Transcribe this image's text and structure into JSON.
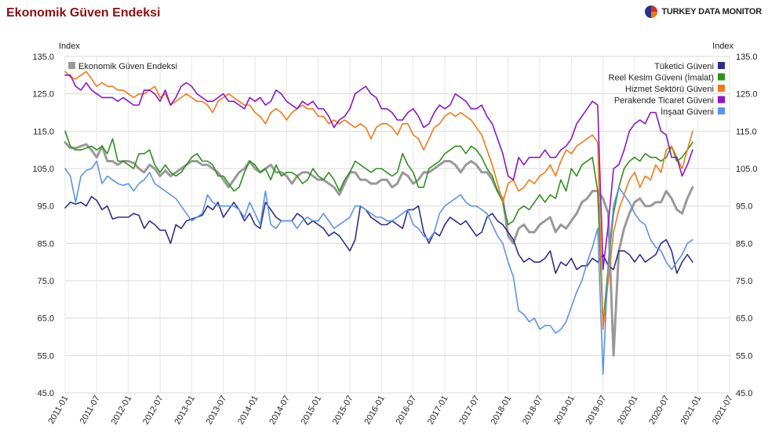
{
  "title": "Ekonomik Güven Endeksi",
  "logo_text": "TURKEY DATA MONITOR",
  "chart_data": {
    "type": "line",
    "ylabel_left": "Index",
    "ylabel_right": "Index",
    "ylim": [
      45,
      135
    ],
    "yticks": [
      "135.0",
      "125.0",
      "115.0",
      "105.0",
      "95.0",
      "85.0",
      "75.0",
      "65.0",
      "55.0",
      "45.0"
    ],
    "ytick_values": [
      135,
      125,
      115,
      105,
      95,
      85,
      75,
      65,
      55,
      45
    ],
    "xticks": [
      "2011-01",
      "2011-07",
      "2012-01",
      "2012-07",
      "2013-01",
      "2013-07",
      "2014-01",
      "2014-07",
      "2015-01",
      "2015-07",
      "2016-01",
      "2016-07",
      "2017-01",
      "2017-07",
      "2018-01",
      "2018-07",
      "2019-01",
      "2019-07",
      "2020-01",
      "2020-07",
      "2021-01",
      "2021-07"
    ],
    "x_start": "2011-01",
    "grid": true,
    "legend_left_placement": "top-left",
    "legend_right_placement": "top-right",
    "series": [
      {
        "name": "Ekonomik Güven Endeksi",
        "color": "#999999",
        "width": 3,
        "legend": "left",
        "values": [
          112,
          110.5,
          110.5,
          111,
          111.5,
          110,
          108,
          111,
          107,
          107,
          106,
          107,
          107,
          106.5,
          105,
          104,
          106,
          105,
          103,
          104.5,
          103,
          104,
          105,
          106,
          107,
          107,
          106,
          106,
          105,
          104,
          102,
          100,
          102,
          104,
          105,
          107,
          105,
          104,
          105,
          106,
          104,
          104,
          103,
          101,
          103,
          104,
          104,
          103,
          102,
          102,
          101,
          100,
          98,
          101,
          104,
          104,
          102,
          102,
          101,
          101,
          102,
          102,
          100,
          101,
          104,
          103,
          101,
          102,
          104,
          104,
          105,
          106,
          107,
          107,
          106,
          104,
          106,
          107,
          106,
          104,
          104,
          102,
          99,
          97,
          87,
          85,
          89,
          90,
          88,
          88,
          90,
          91,
          92,
          88,
          90,
          89,
          91,
          93,
          96,
          97,
          99,
          99,
          97,
          93,
          55,
          83,
          89,
          93,
          96,
          97,
          95,
          95,
          96,
          96,
          99,
          97,
          94,
          93,
          97,
          100
        ]
      },
      {
        "name": "Tüketici Güveni",
        "color": "#2e2f8a",
        "width": 1.6,
        "legend": "right",
        "values": [
          94.5,
          96,
          95.5,
          96,
          95,
          97.5,
          96.5,
          94,
          95,
          91.5,
          92,
          92,
          92,
          93,
          92.5,
          89,
          91,
          90,
          88.5,
          88.5,
          85,
          90,
          89,
          91,
          91.5,
          92,
          92.5,
          95,
          94,
          96,
          92,
          94,
          96,
          94,
          91,
          93,
          90,
          89,
          96,
          94,
          92,
          91,
          91,
          91,
          93,
          92,
          90,
          91,
          90,
          89,
          87,
          88,
          87,
          85,
          83,
          86,
          95,
          94,
          92,
          91,
          90,
          90,
          91,
          90,
          89,
          94,
          94,
          95,
          88,
          85,
          88,
          87,
          90,
          92,
          91,
          90,
          91,
          89,
          87,
          88,
          92,
          93,
          91,
          90,
          88,
          86,
          82,
          80,
          81,
          80,
          80,
          81,
          83,
          77,
          80,
          79,
          81,
          78,
          79,
          79,
          81,
          80,
          82,
          79,
          78,
          83,
          83,
          82,
          80,
          82,
          80,
          81,
          82,
          85,
          86,
          83,
          77,
          80,
          82,
          80
        ]
      },
      {
        "name": "Reel Kesim Güveni (İmalat)",
        "color": "#2f8f1f",
        "width": 1.6,
        "legend": "right",
        "values": [
          115,
          111,
          110,
          110,
          110.5,
          111,
          110,
          111,
          109,
          113,
          107,
          107,
          106,
          105,
          109,
          109,
          110,
          106,
          104,
          106,
          104,
          103,
          104,
          106,
          108,
          109,
          107,
          107,
          106,
          103,
          103,
          101,
          99,
          100,
          104,
          107,
          106,
          104,
          105,
          102,
          106,
          103,
          104,
          104,
          103,
          101,
          102,
          105,
          103,
          102,
          104,
          102,
          99,
          102,
          104,
          107,
          106,
          105,
          104,
          105,
          105,
          104,
          103,
          104,
          109,
          106,
          104,
          100,
          100,
          105,
          106,
          107,
          109,
          110,
          111,
          111,
          109,
          111,
          110,
          108,
          105,
          103,
          99,
          96,
          90,
          91,
          94,
          95,
          94,
          96,
          98,
          96,
          98,
          97,
          102,
          99,
          105,
          103,
          106,
          107,
          108,
          99,
          63,
          79,
          93,
          100,
          105,
          107,
          108,
          107,
          109,
          108,
          108,
          107,
          108,
          111,
          107,
          108,
          110,
          112
        ]
      },
      {
        "name": "Hizmet Sektörü Güveni",
        "color": "#f07a1e",
        "width": 1.6,
        "legend": "right",
        "values": [
          131,
          129.5,
          129,
          130,
          131,
          129,
          127,
          128,
          127,
          127,
          126,
          126,
          125,
          124,
          125,
          125,
          126,
          127,
          124,
          125,
          122,
          123,
          124,
          125,
          124,
          123,
          123,
          122,
          120,
          123,
          124,
          125,
          124,
          123,
          122,
          122,
          120,
          119,
          117,
          120,
          121,
          120,
          118,
          120,
          121,
          122,
          121,
          121,
          119,
          119,
          117,
          118,
          117,
          118,
          117,
          116,
          117,
          116,
          113,
          116,
          117,
          117,
          116,
          114,
          117,
          117,
          114,
          113,
          110,
          113,
          116,
          117,
          119,
          120,
          119,
          120,
          119,
          118,
          116,
          114,
          110,
          106,
          101,
          96,
          101,
          102,
          99,
          100,
          102,
          101,
          103,
          104,
          106,
          103,
          107,
          110,
          109,
          111,
          112,
          113,
          114,
          112,
          62,
          75,
          88,
          94,
          98,
          102,
          104,
          100,
          103,
          102,
          106,
          104,
          110,
          111,
          108,
          105,
          110,
          115
        ]
      },
      {
        "name": "Perakende Ticaret Güveni",
        "color": "#8b16c4",
        "width": 1.6,
        "legend": "right",
        "values": [
          130,
          130,
          127,
          126,
          128,
          126,
          125,
          124,
          124,
          124,
          123,
          124,
          123,
          122,
          122,
          126,
          126,
          125,
          123,
          126,
          122,
          124,
          127,
          128,
          127,
          125,
          124,
          123,
          123,
          124,
          125,
          123,
          123,
          122,
          121,
          124,
          123,
          124,
          122,
          123,
          126,
          125,
          123,
          122,
          121,
          123,
          122,
          123,
          121,
          121,
          119,
          116,
          118,
          119,
          121,
          125,
          126,
          127,
          125,
          124,
          121,
          121,
          120,
          118,
          118,
          120,
          121,
          119,
          116,
          117,
          120,
          122,
          121,
          122,
          125,
          124,
          123,
          121,
          121,
          122,
          119,
          117,
          113,
          109,
          103,
          102,
          108,
          106,
          108,
          108,
          108,
          110,
          108,
          108,
          110,
          111,
          113,
          117,
          119,
          121,
          123,
          122,
          78,
          90,
          105,
          106,
          110,
          115,
          117,
          118,
          117,
          120,
          120,
          115,
          114,
          108,
          108,
          103,
          106,
          110
        ]
      },
      {
        "name": "İnşaat Güveni",
        "color": "#5c93e6",
        "width": 1.6,
        "legend": "right",
        "values": [
          105,
          103,
          96,
          103,
          104.5,
          105,
          107,
          101,
          103,
          102,
          101,
          100.5,
          101,
          99,
          101,
          102,
          104,
          101,
          100,
          99,
          98,
          97,
          95,
          93,
          91,
          92,
          93,
          98,
          96,
          95,
          95,
          95,
          95,
          94,
          92,
          96,
          93,
          90,
          99,
          90,
          89,
          91,
          91,
          91,
          89,
          91,
          92,
          91,
          91,
          93,
          91,
          89,
          90,
          91,
          92,
          95,
          95,
          94,
          93,
          92,
          92,
          91,
          91,
          92,
          93,
          94,
          90,
          89,
          87,
          86,
          88,
          93,
          95,
          96,
          97,
          98,
          96,
          95,
          95,
          94,
          93,
          90,
          87,
          85,
          80,
          76,
          67,
          66,
          64,
          65,
          62,
          63,
          63,
          61,
          62,
          64,
          68,
          72,
          75,
          80,
          84,
          89,
          50,
          80,
          95,
          100,
          98,
          96,
          93,
          91,
          90,
          86,
          84,
          83,
          80,
          78,
          80,
          82,
          85,
          86
        ]
      }
    ]
  }
}
